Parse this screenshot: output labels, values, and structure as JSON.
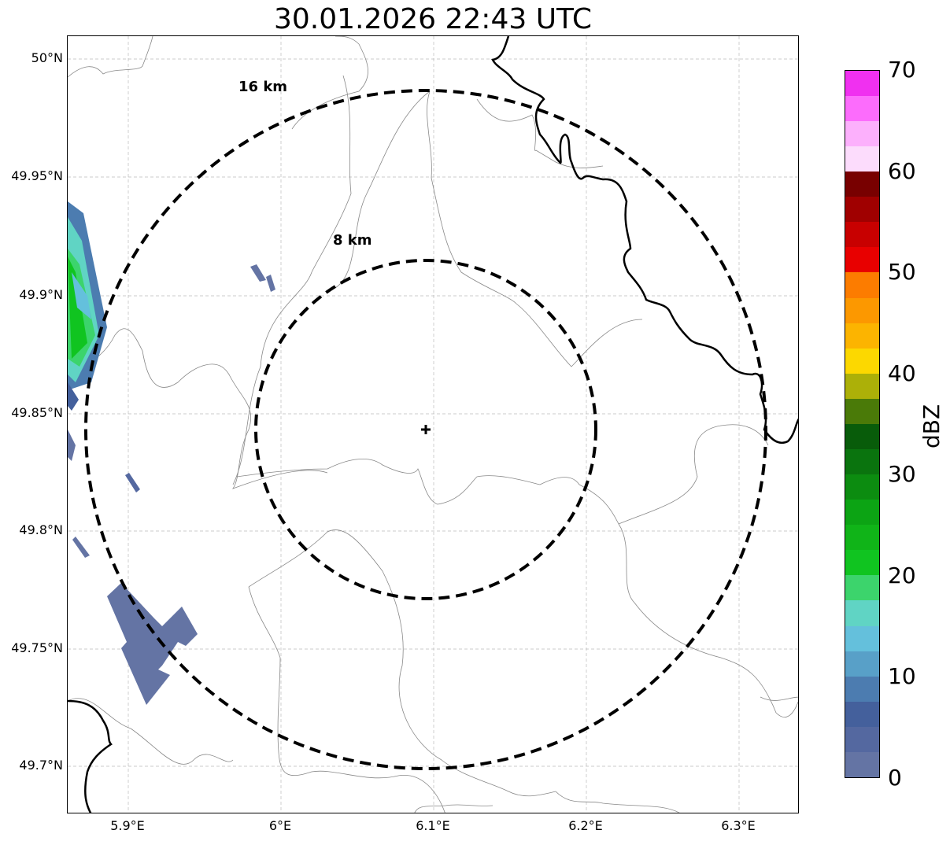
{
  "title": "30.01.2026 22:43 UTC",
  "map": {
    "lat_ticks": [
      "50°N",
      "49.95°N",
      "49.9°N",
      "49.85°N",
      "49.8°N",
      "49.75°N",
      "49.7°N"
    ],
    "lon_ticks": [
      "5.9°E",
      "6°E",
      "6.1°E",
      "6.2°E",
      "6.3°E"
    ],
    "rings": [
      {
        "label": "16 km",
        "radius_km": 16
      },
      {
        "label": "8 km",
        "radius_km": 8
      }
    ],
    "center_marker": "radar-site-cross",
    "grid": true
  },
  "colorbar": {
    "label": "dBZ",
    "ticks": [
      "0",
      "10",
      "20",
      "30",
      "40",
      "50",
      "60",
      "70"
    ],
    "range": [
      0,
      70
    ],
    "step": 2.5,
    "colors": [
      "#6474a4",
      "#5468a0",
      "#44609c",
      "#4c7cb0",
      "#58a0c8",
      "#64c0dc",
      "#60d4c4",
      "#3cd46c",
      "#10c420",
      "#10b418",
      "#0ca414",
      "#0c8c10",
      "#0a740e",
      "#085c0a",
      "#4a7a08",
      "#acb008",
      "#fcd800",
      "#fcb400",
      "#fc9800",
      "#fc7c00",
      "#e80000",
      "#c80000",
      "#a00000",
      "#780000",
      "#fcdcfc",
      "#fcb0fc",
      "#fc6cfc",
      "#f030f0"
    ]
  }
}
